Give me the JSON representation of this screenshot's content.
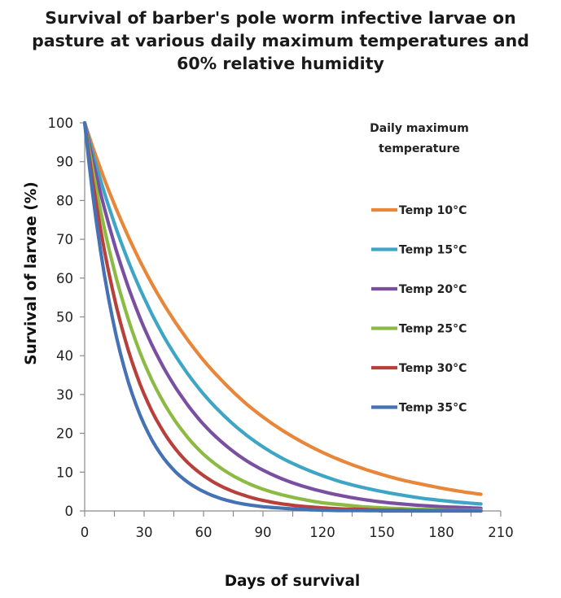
{
  "chart_data": {
    "type": "line",
    "title_lines": [
      "Survival of barber's pole worm infective larvae on",
      "pasture at various daily maximum temperatures and",
      "60% relative humidity"
    ],
    "xlabel": "Days of survival",
    "ylabel": "Survival of larvae (%)",
    "xlim": [
      0,
      210
    ],
    "ylim": [
      0,
      100
    ],
    "x_ticks": [
      0,
      30,
      60,
      90,
      120,
      150,
      180,
      210
    ],
    "y_ticks": [
      0,
      10,
      20,
      30,
      40,
      50,
      60,
      70,
      80,
      90,
      100
    ],
    "grid": false,
    "legend_title_lines": [
      "Daily maximum",
      "temperature"
    ],
    "legend_position": "right",
    "series": [
      {
        "name": "Temp 10°C",
        "color": "#e8863a",
        "x": [
          0,
          10,
          20,
          30,
          40,
          50,
          60,
          70,
          80,
          90,
          100,
          110,
          120,
          130,
          140,
          150,
          160,
          170,
          180,
          190,
          200
        ],
        "values": [
          100,
          85.4,
          73,
          62.3,
          53.2,
          45.5,
          38.8,
          33.2,
          28.3,
          24.2,
          20.7,
          17.7,
          15.1,
          12.9,
          11,
          9.4,
          8,
          6.9,
          5.9,
          5,
          4.3
        ]
      },
      {
        "name": "Temp 15°C",
        "color": "#3ea6c4",
        "x": [
          0,
          10,
          20,
          30,
          40,
          50,
          60,
          70,
          80,
          90,
          100,
          110,
          120,
          130,
          140,
          150,
          160,
          170,
          180,
          190,
          200
        ],
        "values": [
          100,
          81.9,
          67,
          54.9,
          44.9,
          36.8,
          30.1,
          24.7,
          20.2,
          16.5,
          13.5,
          11.1,
          9.1,
          7.4,
          6.1,
          5,
          4.1,
          3.3,
          2.7,
          2.2,
          1.8
        ]
      },
      {
        "name": "Temp 20°C",
        "color": "#7b4fa0",
        "x": [
          0,
          10,
          20,
          30,
          40,
          50,
          60,
          70,
          80,
          90,
          100,
          110,
          120,
          130,
          140,
          150,
          160,
          170,
          180,
          190,
          200
        ],
        "values": [
          100,
          77.9,
          60.7,
          47.2,
          36.8,
          28.7,
          22.3,
          17.4,
          13.5,
          10.5,
          8.2,
          6.4,
          5,
          3.9,
          3,
          2.3,
          1.8,
          1.4,
          1.1,
          0.9,
          0.7
        ]
      },
      {
        "name": "Temp 25°C",
        "color": "#8cbb44",
        "x": [
          0,
          10,
          20,
          30,
          40,
          50,
          60,
          70,
          80,
          90,
          100,
          110,
          120,
          130,
          140,
          150,
          160,
          170,
          180,
          190,
          200
        ],
        "values": [
          100,
          72.6,
          52.7,
          38.2,
          27.8,
          20.2,
          14.6,
          10.6,
          7.7,
          5.6,
          4.1,
          3,
          2.1,
          1.6,
          1.1,
          0.8,
          0.6,
          0.4,
          0.3,
          0.2,
          0.2
        ]
      },
      {
        "name": "Temp 30°C",
        "color": "#b8403c",
        "x": [
          0,
          10,
          20,
          30,
          40,
          50,
          60,
          70,
          80,
          90,
          100,
          110,
          120,
          130,
          140,
          150,
          160,
          170,
          180,
          190,
          200
        ],
        "values": [
          100,
          67,
          44.9,
          30.1,
          20.2,
          13.5,
          9.1,
          6.1,
          4.1,
          2.7,
          1.8,
          1.2,
          0.8,
          0.5,
          0.4,
          0.2,
          0.2,
          0.1,
          0.1,
          0.1,
          0
        ]
      },
      {
        "name": "Temp 35°C",
        "color": "#4472b4",
        "x": [
          0,
          10,
          20,
          30,
          40,
          50,
          60,
          70,
          80,
          90,
          100,
          110,
          120,
          130,
          140,
          150,
          160,
          170,
          180,
          190,
          200
        ],
        "values": [
          100,
          60.7,
          36.8,
          22.3,
          13.5,
          8.2,
          5,
          3,
          1.8,
          1.1,
          0.7,
          0.4,
          0.2,
          0.1,
          0.1,
          0,
          0,
          0,
          0,
          0,
          0
        ]
      }
    ]
  }
}
